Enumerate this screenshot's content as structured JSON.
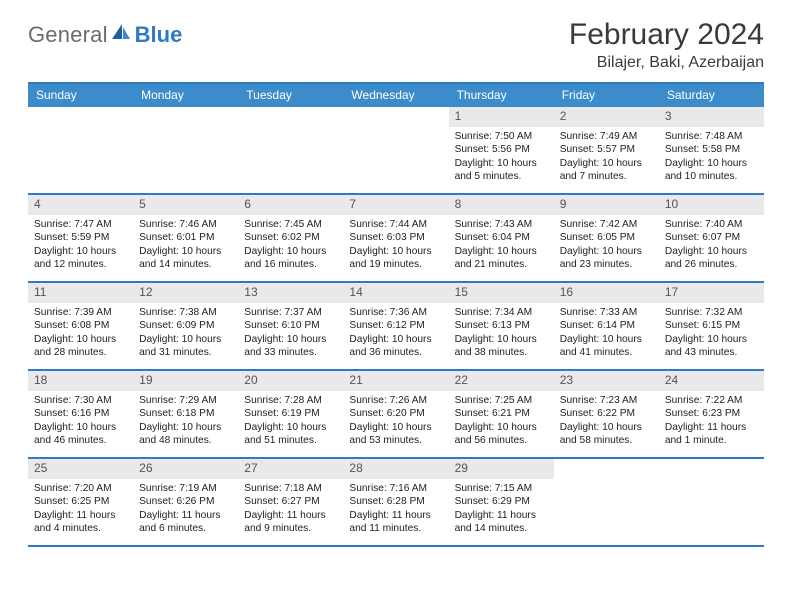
{
  "brand": {
    "word1": "General",
    "word2": "Blue",
    "text_color": "#6b6b6b",
    "blue_color": "#2f7bbf"
  },
  "header": {
    "title": "February 2024",
    "location": "Bilajer, Baki, Azerbaijan"
  },
  "style": {
    "header_bg": "#3c8ccc",
    "border_color": "#2f7bbf",
    "daynum_bg": "#e9e9e9",
    "text_color": "#222222",
    "body_fontsize": 10.2,
    "header_fontsize": 12,
    "title_fontsize": 30
  },
  "weekdays": [
    "Sunday",
    "Monday",
    "Tuesday",
    "Wednesday",
    "Thursday",
    "Friday",
    "Saturday"
  ],
  "weeks": [
    [
      {
        "empty": true
      },
      {
        "empty": true
      },
      {
        "empty": true
      },
      {
        "empty": true
      },
      {
        "n": "1",
        "sr": "Sunrise: 7:50 AM",
        "ss": "Sunset: 5:56 PM",
        "d1": "Daylight: 10 hours",
        "d2": "and 5 minutes."
      },
      {
        "n": "2",
        "sr": "Sunrise: 7:49 AM",
        "ss": "Sunset: 5:57 PM",
        "d1": "Daylight: 10 hours",
        "d2": "and 7 minutes."
      },
      {
        "n": "3",
        "sr": "Sunrise: 7:48 AM",
        "ss": "Sunset: 5:58 PM",
        "d1": "Daylight: 10 hours",
        "d2": "and 10 minutes."
      }
    ],
    [
      {
        "n": "4",
        "sr": "Sunrise: 7:47 AM",
        "ss": "Sunset: 5:59 PM",
        "d1": "Daylight: 10 hours",
        "d2": "and 12 minutes."
      },
      {
        "n": "5",
        "sr": "Sunrise: 7:46 AM",
        "ss": "Sunset: 6:01 PM",
        "d1": "Daylight: 10 hours",
        "d2": "and 14 minutes."
      },
      {
        "n": "6",
        "sr": "Sunrise: 7:45 AM",
        "ss": "Sunset: 6:02 PM",
        "d1": "Daylight: 10 hours",
        "d2": "and 16 minutes."
      },
      {
        "n": "7",
        "sr": "Sunrise: 7:44 AM",
        "ss": "Sunset: 6:03 PM",
        "d1": "Daylight: 10 hours",
        "d2": "and 19 minutes."
      },
      {
        "n": "8",
        "sr": "Sunrise: 7:43 AM",
        "ss": "Sunset: 6:04 PM",
        "d1": "Daylight: 10 hours",
        "d2": "and 21 minutes."
      },
      {
        "n": "9",
        "sr": "Sunrise: 7:42 AM",
        "ss": "Sunset: 6:05 PM",
        "d1": "Daylight: 10 hours",
        "d2": "and 23 minutes."
      },
      {
        "n": "10",
        "sr": "Sunrise: 7:40 AM",
        "ss": "Sunset: 6:07 PM",
        "d1": "Daylight: 10 hours",
        "d2": "and 26 minutes."
      }
    ],
    [
      {
        "n": "11",
        "sr": "Sunrise: 7:39 AM",
        "ss": "Sunset: 6:08 PM",
        "d1": "Daylight: 10 hours",
        "d2": "and 28 minutes."
      },
      {
        "n": "12",
        "sr": "Sunrise: 7:38 AM",
        "ss": "Sunset: 6:09 PM",
        "d1": "Daylight: 10 hours",
        "d2": "and 31 minutes."
      },
      {
        "n": "13",
        "sr": "Sunrise: 7:37 AM",
        "ss": "Sunset: 6:10 PM",
        "d1": "Daylight: 10 hours",
        "d2": "and 33 minutes."
      },
      {
        "n": "14",
        "sr": "Sunrise: 7:36 AM",
        "ss": "Sunset: 6:12 PM",
        "d1": "Daylight: 10 hours",
        "d2": "and 36 minutes."
      },
      {
        "n": "15",
        "sr": "Sunrise: 7:34 AM",
        "ss": "Sunset: 6:13 PM",
        "d1": "Daylight: 10 hours",
        "d2": "and 38 minutes."
      },
      {
        "n": "16",
        "sr": "Sunrise: 7:33 AM",
        "ss": "Sunset: 6:14 PM",
        "d1": "Daylight: 10 hours",
        "d2": "and 41 minutes."
      },
      {
        "n": "17",
        "sr": "Sunrise: 7:32 AM",
        "ss": "Sunset: 6:15 PM",
        "d1": "Daylight: 10 hours",
        "d2": "and 43 minutes."
      }
    ],
    [
      {
        "n": "18",
        "sr": "Sunrise: 7:30 AM",
        "ss": "Sunset: 6:16 PM",
        "d1": "Daylight: 10 hours",
        "d2": "and 46 minutes."
      },
      {
        "n": "19",
        "sr": "Sunrise: 7:29 AM",
        "ss": "Sunset: 6:18 PM",
        "d1": "Daylight: 10 hours",
        "d2": "and 48 minutes."
      },
      {
        "n": "20",
        "sr": "Sunrise: 7:28 AM",
        "ss": "Sunset: 6:19 PM",
        "d1": "Daylight: 10 hours",
        "d2": "and 51 minutes."
      },
      {
        "n": "21",
        "sr": "Sunrise: 7:26 AM",
        "ss": "Sunset: 6:20 PM",
        "d1": "Daylight: 10 hours",
        "d2": "and 53 minutes."
      },
      {
        "n": "22",
        "sr": "Sunrise: 7:25 AM",
        "ss": "Sunset: 6:21 PM",
        "d1": "Daylight: 10 hours",
        "d2": "and 56 minutes."
      },
      {
        "n": "23",
        "sr": "Sunrise: 7:23 AM",
        "ss": "Sunset: 6:22 PM",
        "d1": "Daylight: 10 hours",
        "d2": "and 58 minutes."
      },
      {
        "n": "24",
        "sr": "Sunrise: 7:22 AM",
        "ss": "Sunset: 6:23 PM",
        "d1": "Daylight: 11 hours",
        "d2": "and 1 minute."
      }
    ],
    [
      {
        "n": "25",
        "sr": "Sunrise: 7:20 AM",
        "ss": "Sunset: 6:25 PM",
        "d1": "Daylight: 11 hours",
        "d2": "and 4 minutes."
      },
      {
        "n": "26",
        "sr": "Sunrise: 7:19 AM",
        "ss": "Sunset: 6:26 PM",
        "d1": "Daylight: 11 hours",
        "d2": "and 6 minutes."
      },
      {
        "n": "27",
        "sr": "Sunrise: 7:18 AM",
        "ss": "Sunset: 6:27 PM",
        "d1": "Daylight: 11 hours",
        "d2": "and 9 minutes."
      },
      {
        "n": "28",
        "sr": "Sunrise: 7:16 AM",
        "ss": "Sunset: 6:28 PM",
        "d1": "Daylight: 11 hours",
        "d2": "and 11 minutes."
      },
      {
        "n": "29",
        "sr": "Sunrise: 7:15 AM",
        "ss": "Sunset: 6:29 PM",
        "d1": "Daylight: 11 hours",
        "d2": "and 14 minutes."
      },
      {
        "empty": true
      },
      {
        "empty": true
      }
    ]
  ]
}
